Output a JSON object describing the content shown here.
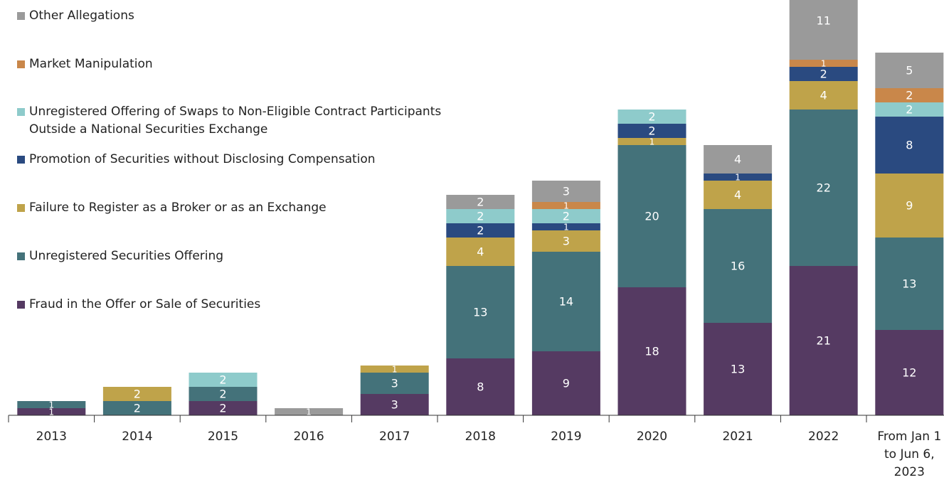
{
  "chart_data": {
    "type": "stacked_bar",
    "categories": [
      "2013",
      "2014",
      "2015",
      "2016",
      "2017",
      "2018",
      "2019",
      "2020",
      "2021",
      "2022",
      "From Jan 1 to Jun 6, 2023"
    ],
    "series": [
      {
        "name": "Fraud in the Offer or Sale of Securities",
        "color": "#553a62",
        "values": [
          1,
          null,
          2,
          null,
          3,
          8,
          9,
          18,
          13,
          21,
          12
        ]
      },
      {
        "name": "Unregistered Securities Offering",
        "color": "#44727a",
        "values": [
          1,
          2,
          2,
          null,
          3,
          13,
          14,
          20,
          16,
          22,
          13
        ]
      },
      {
        "name": "Failure to Register as a Broker or as an Exchange",
        "color": "#bfa34a",
        "values": [
          null,
          2,
          null,
          null,
          1,
          4,
          3,
          1,
          4,
          4,
          9
        ]
      },
      {
        "name": "Promotion of Securities without Disclosing Compensation",
        "color": "#2a4a80",
        "values": [
          null,
          null,
          null,
          null,
          null,
          2,
          1,
          2,
          1,
          2,
          8
        ]
      },
      {
        "name": "Unregistered Offering of Swaps to Non-Eligible Contract Participants Outside a National Securities Exchange",
        "color": "#8ecbcb",
        "values": [
          null,
          null,
          2,
          null,
          null,
          2,
          2,
          2,
          null,
          null,
          2
        ]
      },
      {
        "name": "Market Manipulation",
        "color": "#c9874a",
        "values": [
          null,
          null,
          null,
          null,
          null,
          null,
          1,
          null,
          null,
          1,
          2
        ]
      },
      {
        "name": "Other Allegations",
        "color": "#9a9a9a",
        "values": [
          null,
          null,
          null,
          1,
          null,
          2,
          3,
          null,
          4,
          11,
          5
        ]
      }
    ]
  }
}
